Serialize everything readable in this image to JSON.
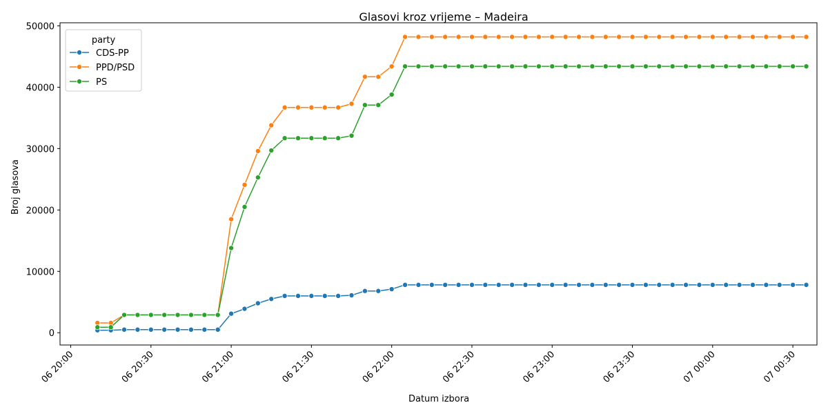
{
  "chart_data": {
    "type": "line",
    "title": "Glasovi kroz vrijeme – Madeira",
    "xlabel": "Datum izbora",
    "ylabel": "Broj glasova",
    "legend_title": "party",
    "legend_position": "top-left",
    "grid": false,
    "markers": true,
    "x_start": "06 20:10",
    "x_step_minutes": 5,
    "x": [
      "06 20:10",
      "06 20:15",
      "06 20:20",
      "06 20:25",
      "06 20:30",
      "06 20:35",
      "06 20:40",
      "06 20:45",
      "06 20:50",
      "06 20:55",
      "06 21:00",
      "06 21:05",
      "06 21:10",
      "06 21:15",
      "06 21:20",
      "06 21:25",
      "06 21:30",
      "06 21:35",
      "06 21:40",
      "06 21:45",
      "06 21:50",
      "06 21:55",
      "06 22:00",
      "06 22:05",
      "06 22:10",
      "06 22:15",
      "06 22:20",
      "06 22:25",
      "06 22:30",
      "06 22:35",
      "06 22:40",
      "06 22:45",
      "06 22:50",
      "06 22:55",
      "06 23:00",
      "06 23:05",
      "06 23:10",
      "06 23:15",
      "06 23:20",
      "06 23:25",
      "06 23:30",
      "06 23:35",
      "06 23:40",
      "06 23:45",
      "06 23:50",
      "06 23:55",
      "07 00:00",
      "07 00:05",
      "07 00:10",
      "07 00:15",
      "07 00:20",
      "07 00:25",
      "07 00:30",
      "07 00:35"
    ],
    "xlim": [
      "06 19:56",
      "07 00:39"
    ],
    "xticks": [
      "06 20:00",
      "06 20:30",
      "06 21:00",
      "06 21:30",
      "06 22:00",
      "06 22:30",
      "06 23:00",
      "06 23:30",
      "07 00:00",
      "07 00:30"
    ],
    "ylim": [
      -2000,
      50500
    ],
    "yticks": [
      0,
      10000,
      20000,
      30000,
      40000,
      50000
    ],
    "series": [
      {
        "name": "CDS-PP",
        "color": "#1f77b4",
        "values": [
          400,
          400,
          500,
          500,
          500,
          500,
          500,
          500,
          500,
          500,
          3100,
          3900,
          4800,
          5500,
          6000,
          6000,
          6000,
          6000,
          6000,
          6100,
          6800,
          6800,
          7100,
          7800,
          7800,
          7800,
          7800,
          7800,
          7800,
          7800,
          7800,
          7800,
          7800,
          7800,
          7800,
          7800,
          7800,
          7800,
          7800,
          7800,
          7800,
          7800,
          7800,
          7800,
          7800,
          7800,
          7800,
          7800,
          7800,
          7800,
          7800,
          7800,
          7800,
          7800
        ]
      },
      {
        "name": "PPD/PSD",
        "color": "#ff7f0e",
        "values": [
          1600,
          1600,
          2900,
          2900,
          2900,
          2900,
          2900,
          2900,
          2900,
          2900,
          18500,
          24100,
          29600,
          33800,
          36700,
          36700,
          36700,
          36700,
          36700,
          37300,
          41700,
          41700,
          43400,
          48200,
          48200,
          48200,
          48200,
          48200,
          48200,
          48200,
          48200,
          48200,
          48200,
          48200,
          48200,
          48200,
          48200,
          48200,
          48200,
          48200,
          48200,
          48200,
          48200,
          48200,
          48200,
          48200,
          48200,
          48200,
          48200,
          48200,
          48200,
          48200,
          48200,
          48200
        ]
      },
      {
        "name": "PS",
        "color": "#2ca02c",
        "values": [
          900,
          900,
          2900,
          2900,
          2900,
          2900,
          2900,
          2900,
          2900,
          2900,
          13800,
          20500,
          25300,
          29700,
          31700,
          31700,
          31700,
          31700,
          31700,
          32100,
          37100,
          37100,
          38800,
          43400,
          43400,
          43400,
          43400,
          43400,
          43400,
          43400,
          43400,
          43400,
          43400,
          43400,
          43400,
          43400,
          43400,
          43400,
          43400,
          43400,
          43400,
          43400,
          43400,
          43400,
          43400,
          43400,
          43400,
          43400,
          43400,
          43400,
          43400,
          43400,
          43400,
          43400
        ]
      }
    ]
  }
}
